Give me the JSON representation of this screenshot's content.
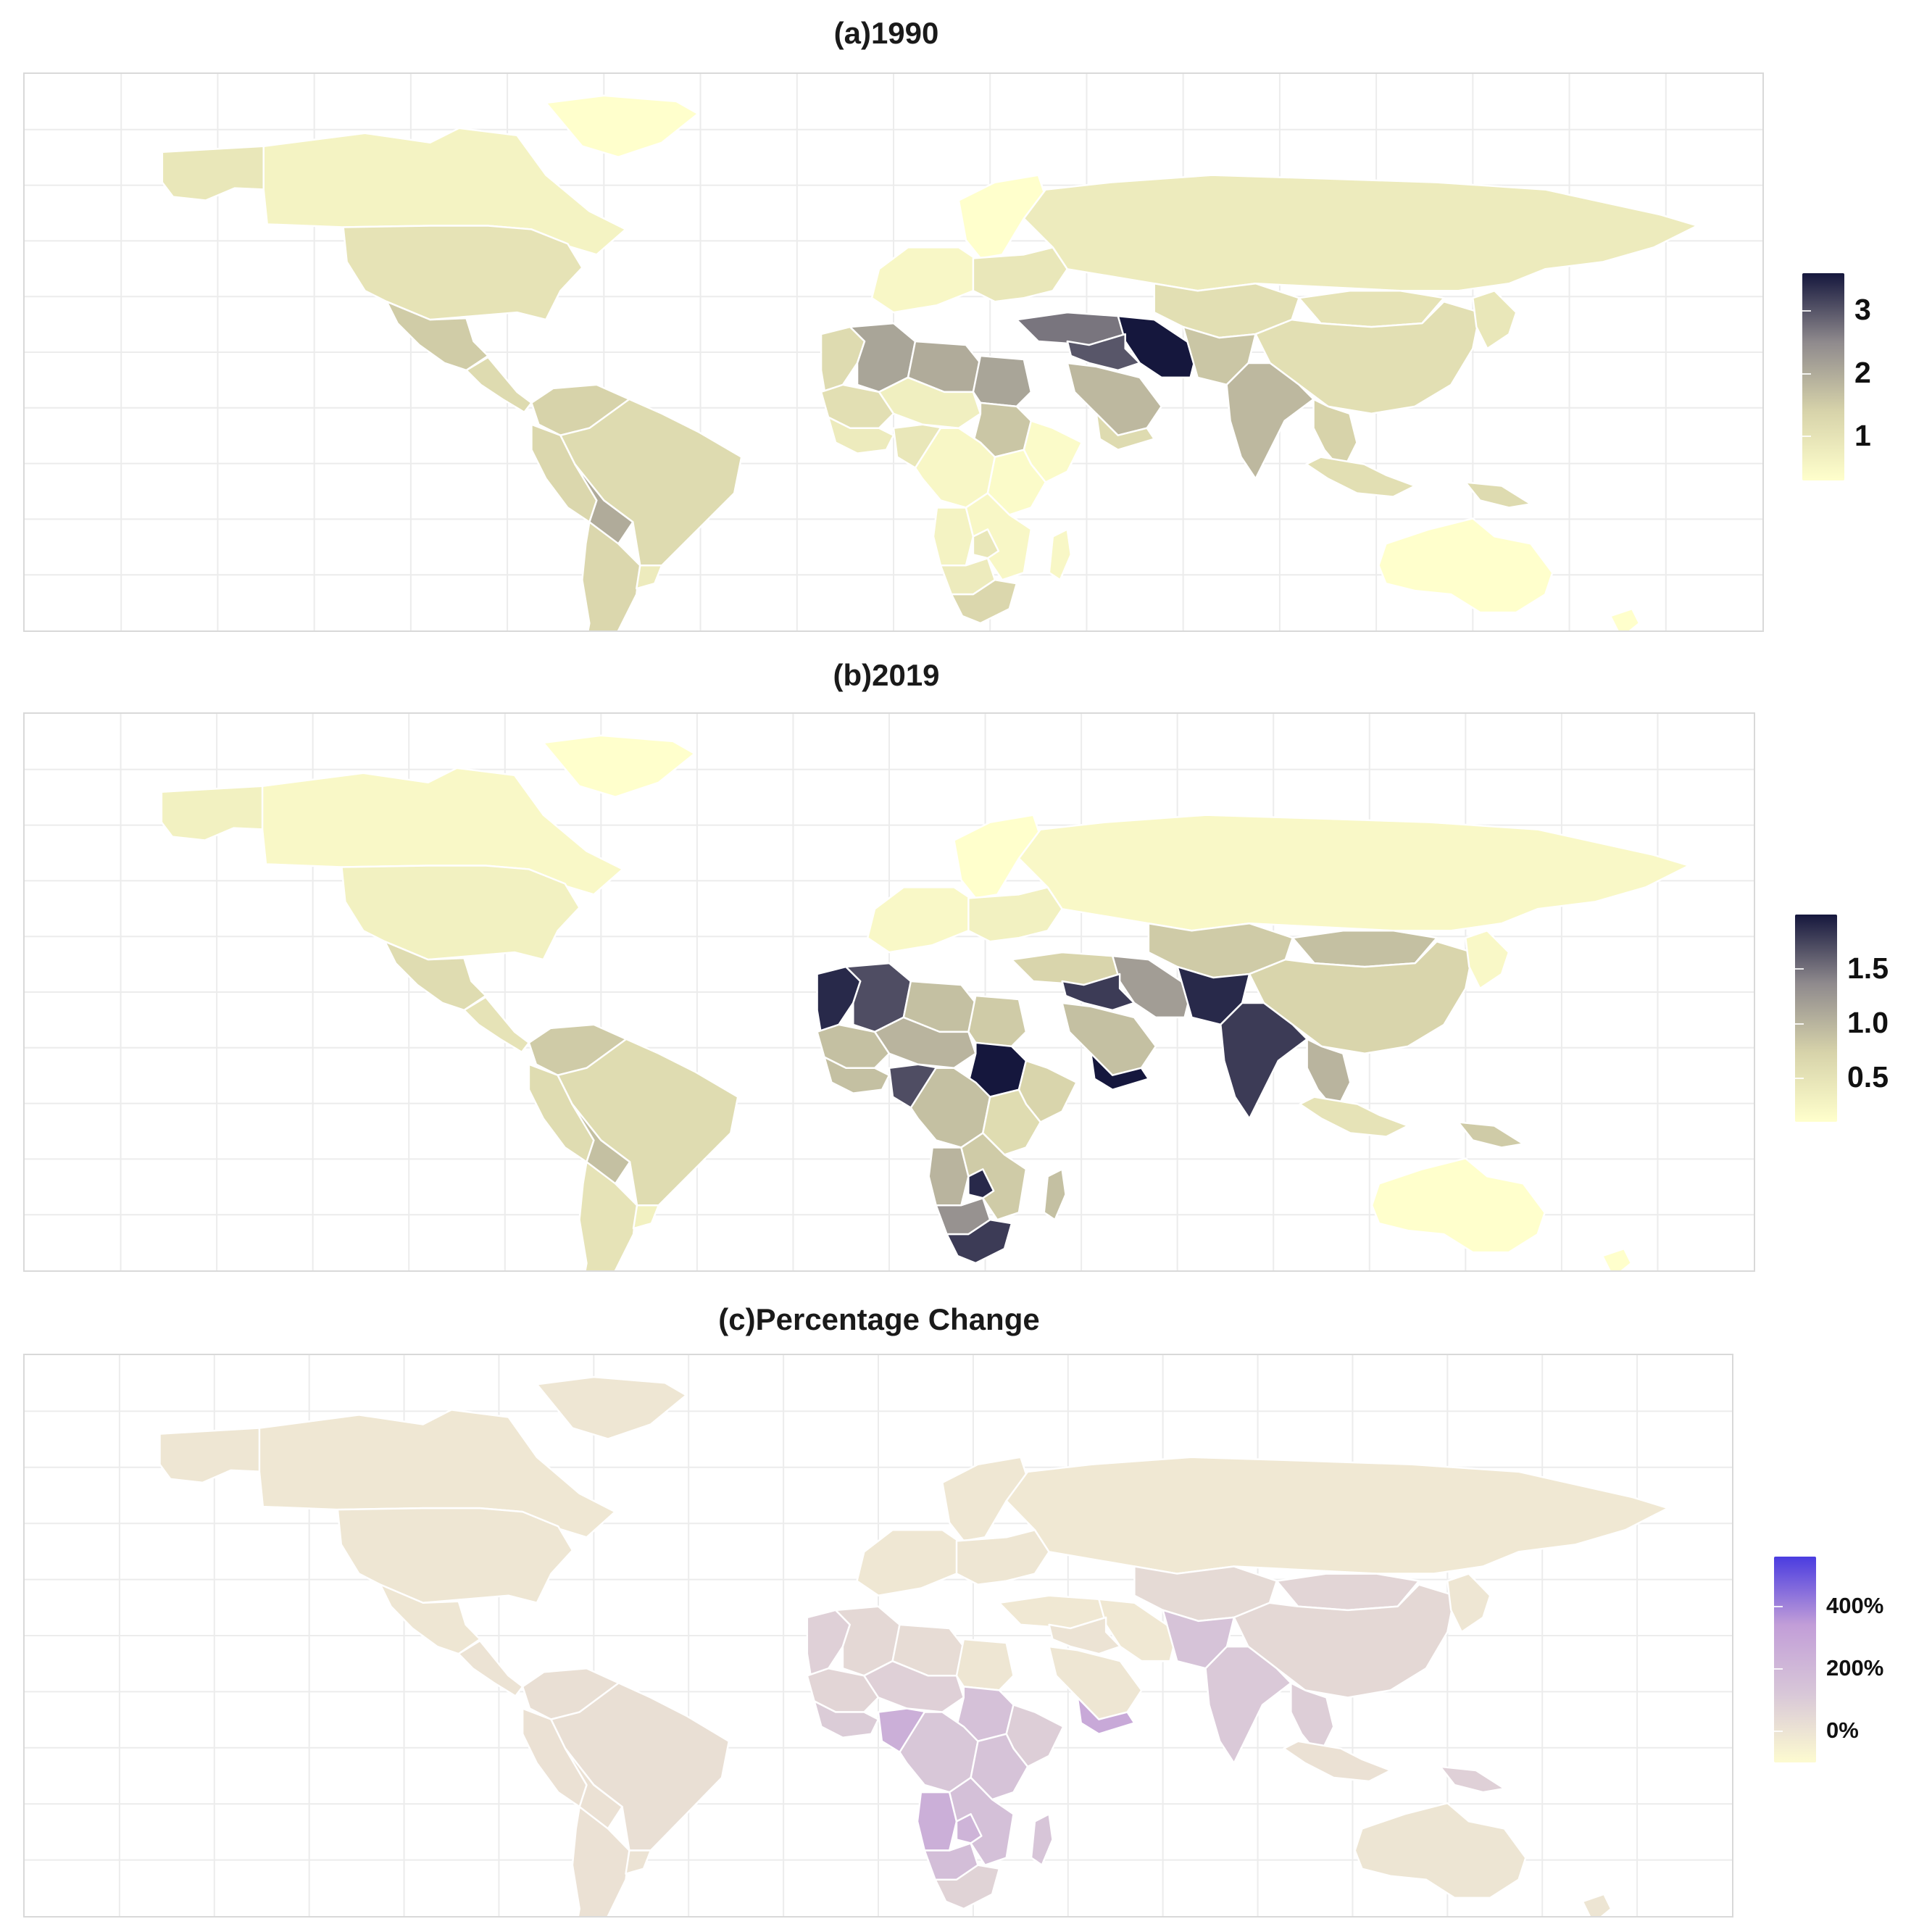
{
  "figure": {
    "panels": [
      {
        "id": "a",
        "title": "(a)1990",
        "scale": "1990",
        "legend": {
          "ticks": [
            "3",
            "2",
            "1"
          ],
          "tick_values": [
            3,
            2,
            1
          ],
          "range": [
            0.3,
            3.6
          ],
          "colors": [
            "#ffffcc",
            "#d7d3aa",
            "#8f8a8d",
            "#15173d"
          ]
        }
      },
      {
        "id": "b",
        "title": "(b)2019",
        "scale": "2019",
        "legend": {
          "ticks": [
            "1.5",
            "1.0",
            "0.5"
          ],
          "tick_values": [
            1.5,
            1.0,
            0.5
          ],
          "range": [
            0.1,
            2.0
          ],
          "colors": [
            "#ffffcc",
            "#d7d3aa",
            "#8f8a8d",
            "#15173d"
          ]
        }
      },
      {
        "id": "c",
        "title": "(c)Percentage Change",
        "scale": "change",
        "legend": {
          "ticks": [
            "400%",
            "200%",
            "0%"
          ],
          "tick_values": [
            400,
            200,
            0
          ],
          "range": [
            -100,
            560
          ],
          "colors": [
            "#fdfbd0",
            "#d8c7d8",
            "#c29ed8",
            "#4a3ce0"
          ]
        }
      }
    ],
    "map_colors": {
      "background": "#ffffff",
      "grid": "#ececec",
      "border": "#ffffff",
      "frame": "#d9d9d9"
    },
    "regions": [
      {
        "key": "alaska",
        "name": "Alaska",
        "1990": 0.9,
        "2019": 0.3,
        "change": -10
      },
      {
        "key": "canada",
        "name": "Canada",
        "1990": 0.6,
        "2019": 0.2,
        "change": -15
      },
      {
        "key": "greenland",
        "name": "Greenland",
        "1990": 0.3,
        "2019": 0.1,
        "change": -10
      },
      {
        "key": "usa",
        "name": "United States",
        "1990": 1.0,
        "2019": 0.3,
        "change": -10
      },
      {
        "key": "mexico",
        "name": "Mexico",
        "1990": 1.5,
        "2019": 0.6,
        "change": -10
      },
      {
        "key": "central_america",
        "name": "Central America",
        "1990": 1.2,
        "2019": 0.5,
        "change": 0
      },
      {
        "key": "colombia_venezuela",
        "name": "Colombia / Venezuela",
        "1990": 1.4,
        "2019": 0.8,
        "change": 20
      },
      {
        "key": "peru_ecuador",
        "name": "Peru / Ecuador",
        "1990": 1.3,
        "2019": 0.6,
        "change": 10
      },
      {
        "key": "brazil",
        "name": "Brazil",
        "1990": 1.2,
        "2019": 0.6,
        "change": 20
      },
      {
        "key": "bolivia",
        "name": "Bolivia",
        "1990": 2.0,
        "2019": 0.9,
        "change": 10
      },
      {
        "key": "argentina_chile",
        "name": "Argentina / Chile",
        "1990": 1.3,
        "2019": 0.5,
        "change": 10
      },
      {
        "key": "uruguay",
        "name": "Uruguay",
        "1990": 0.8,
        "2019": 0.3,
        "change": 0
      },
      {
        "key": "scandinavia",
        "name": "Scandinavia",
        "1990": 0.3,
        "2019": 0.1,
        "change": -15
      },
      {
        "key": "western_europe",
        "name": "Western Europe",
        "1990": 0.5,
        "2019": 0.2,
        "change": -15
      },
      {
        "key": "eastern_europe",
        "name": "Eastern Europe",
        "1990": 0.9,
        "2019": 0.3,
        "change": -10
      },
      {
        "key": "russia",
        "name": "Russia",
        "1990": 0.8,
        "2019": 0.2,
        "change": -20
      },
      {
        "key": "turkey",
        "name": "Turkey",
        "1990": 2.7,
        "2019": 0.7,
        "change": -20
      },
      {
        "key": "kazakhstan",
        "name": "Kazakhstan / Central Asia",
        "1990": 1.1,
        "2019": 0.8,
        "change": 40
      },
      {
        "key": "mongolia",
        "name": "Mongolia",
        "1990": 1.0,
        "2019": 0.9,
        "change": 60
      },
      {
        "key": "china",
        "name": "China",
        "1990": 1.1,
        "2019": 0.7,
        "change": 50
      },
      {
        "key": "japan_korea",
        "name": "Japan / Korea",
        "1990": 0.9,
        "2019": 0.2,
        "change": -10
      },
      {
        "key": "iran",
        "name": "Iran",
        "1990": 3.6,
        "2019": 1.2,
        "change": -20
      },
      {
        "key": "iraq_syria",
        "name": "Iraq / Syria",
        "1990": 3.0,
        "2019": 1.8,
        "change": 0
      },
      {
        "key": "afghanistan_pakistan",
        "name": "Afghanistan / Pakistan",
        "1990": 1.6,
        "2019": 1.9,
        "change": 140
      },
      {
        "key": "arabia",
        "name": "Saudi Arabia",
        "1990": 1.8,
        "2019": 0.9,
        "change": -10
      },
      {
        "key": "yemen",
        "name": "Yemen",
        "1990": 1.2,
        "2019": 2.0,
        "change": 280
      },
      {
        "key": "india",
        "name": "India",
        "1990": 1.8,
        "2019": 1.8,
        "change": 110
      },
      {
        "key": "southeast_asia",
        "name": "Mainland Southeast Asia",
        "1990": 1.4,
        "2019": 1.0,
        "change": 90
      },
      {
        "key": "indonesia",
        "name": "Indonesia",
        "1990": 1.1,
        "2019": 0.5,
        "change": 10
      },
      {
        "key": "new_guinea",
        "name": "New Guinea",
        "1990": 1.2,
        "2019": 0.8,
        "change": 80
      },
      {
        "key": "australia",
        "name": "Australia",
        "1990": 0.3,
        "2019": 0.1,
        "change": -5
      },
      {
        "key": "new_zealand",
        "name": "New Zealand",
        "1990": 0.3,
        "2019": 0.1,
        "change": -5
      },
      {
        "key": "morocco",
        "name": "Morocco / Western Sahara",
        "1990": 1.2,
        "2019": 1.9,
        "change": 80
      },
      {
        "key": "algeria",
        "name": "Algeria",
        "1990": 2.1,
        "2019": 1.7,
        "change": 50
      },
      {
        "key": "libya",
        "name": "Libya",
        "1990": 2.0,
        "2019": 0.9,
        "change": 30
      },
      {
        "key": "egypt",
        "name": "Egypt",
        "1990": 2.1,
        "2019": 0.8,
        "change": -10
      },
      {
        "key": "sahel_west",
        "name": "Mauritania / Mali",
        "1990": 1.1,
        "2019": 0.9,
        "change": 60
      },
      {
        "key": "niger_chad",
        "name": "Niger / Chad",
        "1990": 0.7,
        "2019": 1.0,
        "change": 80
      },
      {
        "key": "sudan",
        "name": "Sudan",
        "1990": 1.6,
        "2019": 2.0,
        "change": 150
      },
      {
        "key": "horn",
        "name": "Ethiopia / Somalia",
        "1990": 0.4,
        "2019": 0.7,
        "change": 90
      },
      {
        "key": "west_africa",
        "name": "West Africa coast",
        "1990": 0.8,
        "2019": 0.9,
        "change": 100
      },
      {
        "key": "nigeria",
        "name": "Nigeria",
        "1990": 0.9,
        "2019": 1.7,
        "change": 250
      },
      {
        "key": "central_africa",
        "name": "Central Africa",
        "1990": 0.5,
        "2019": 0.9,
        "change": 120
      },
      {
        "key": "east_africa",
        "name": "East Africa",
        "1990": 0.4,
        "2019": 0.6,
        "change": 140
      },
      {
        "key": "angola",
        "name": "Angola",
        "1990": 0.6,
        "2019": 1.0,
        "change": 250
      },
      {
        "key": "zambia_mozambique",
        "name": "Zambia / Mozambique",
        "1990": 0.5,
        "2019": 0.8,
        "change": 160
      },
      {
        "key": "namibia_botswana",
        "name": "Namibia / Botswana",
        "1990": 0.8,
        "2019": 1.3,
        "change": 170
      },
      {
        "key": "zimbabwe",
        "name": "Zimbabwe",
        "1990": 0.9,
        "2019": 1.9,
        "change": 220
      },
      {
        "key": "south_africa",
        "name": "South Africa",
        "1990": 1.3,
        "2019": 1.8,
        "change": 70
      },
      {
        "key": "madagascar",
        "name": "Madagascar",
        "1990": 0.5,
        "2019": 0.9,
        "change": 130
      }
    ]
  }
}
